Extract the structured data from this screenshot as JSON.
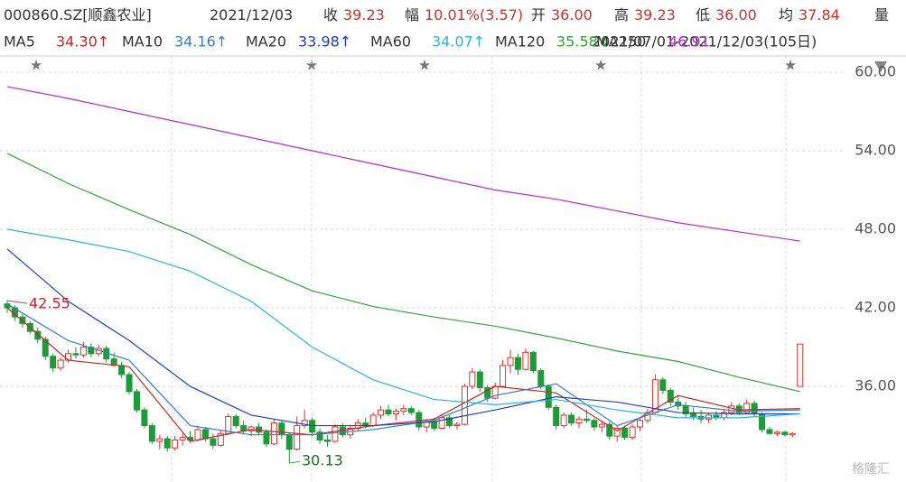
{
  "header": {
    "symbol": "000860.SZ[顺鑫农业]",
    "date": "2021/12/03",
    "fields": [
      [
        "收",
        "39.23"
      ],
      [
        "幅",
        "10.01%(3.57)"
      ],
      [
        "开",
        "36.00"
      ],
      [
        "高",
        "39.23"
      ],
      [
        "低",
        "36.00"
      ],
      [
        "均",
        "37.84"
      ]
    ],
    "volume_label": "量",
    "range": "2021/07/01-2021/12/03(105日)"
  },
  "chart_data": {
    "type": "candlestick",
    "up_color": "#e0302b",
    "down_color": "#1f9a3a",
    "ylim": [
      29.66,
      61.24
    ],
    "yticks": [
      {
        "value": 36,
        "label": "36.00"
      },
      {
        "value": 42,
        "label": "42.00"
      },
      {
        "value": 48,
        "label": "48.00"
      },
      {
        "value": 54,
        "label": "54.00"
      },
      {
        "value": 60,
        "label": "60.00"
      }
    ],
    "grid": true,
    "candles": [
      [
        42.3,
        42.55,
        41.6,
        42.0
      ],
      [
        42.0,
        42.2,
        41.0,
        41.3
      ],
      [
        41.3,
        41.6,
        40.5,
        40.8
      ],
      [
        40.8,
        41.0,
        40.0,
        40.2
      ],
      [
        40.2,
        40.5,
        39.3,
        39.6
      ],
      [
        39.6,
        39.8,
        38.0,
        38.3
      ],
      [
        38.3,
        38.5,
        37.1,
        37.4
      ],
      [
        37.4,
        38.2,
        37.2,
        38.0
      ],
      [
        38.0,
        38.8,
        37.8,
        38.5
      ],
      [
        38.5,
        39.0,
        38.1,
        38.4
      ],
      [
        38.4,
        39.4,
        38.2,
        39.0
      ],
      [
        39.0,
        39.3,
        38.2,
        38.5
      ],
      [
        38.5,
        39.2,
        38.3,
        38.9
      ],
      [
        38.9,
        39.1,
        37.8,
        38.1
      ],
      [
        38.1,
        38.6,
        37.5,
        37.6
      ],
      [
        37.6,
        37.9,
        36.6,
        36.9
      ],
      [
        36.9,
        37.1,
        35.4,
        35.6
      ],
      [
        35.6,
        35.8,
        34.0,
        34.2
      ],
      [
        34.2,
        34.4,
        32.8,
        33.0
      ],
      [
        33.0,
        33.2,
        31.6,
        31.8
      ],
      [
        31.8,
        32.3,
        31.2,
        32.0
      ],
      [
        32.0,
        32.2,
        31.0,
        31.3
      ],
      [
        31.3,
        32.2,
        31.1,
        31.9
      ],
      [
        31.9,
        32.4,
        31.5,
        32.1
      ],
      [
        32.1,
        32.6,
        31.7,
        31.9
      ],
      [
        31.9,
        33.0,
        31.8,
        32.7
      ],
      [
        32.7,
        32.9,
        31.8,
        32.0
      ],
      [
        32.0,
        32.4,
        31.2,
        31.5
      ],
      [
        31.5,
        32.6,
        31.4,
        32.4
      ],
      [
        32.4,
        33.9,
        32.3,
        33.7
      ],
      [
        33.7,
        33.9,
        32.8,
        33.0
      ],
      [
        33.0,
        33.4,
        32.4,
        32.6
      ],
      [
        32.6,
        33.0,
        32.2,
        32.9
      ],
      [
        32.9,
        33.2,
        32.3,
        32.5
      ],
      [
        32.5,
        32.7,
        31.4,
        31.6
      ],
      [
        31.6,
        33.5,
        31.5,
        33.2
      ],
      [
        33.2,
        33.4,
        32.0,
        32.3
      ],
      [
        32.3,
        32.5,
        30.13,
        31.2
      ],
      [
        31.2,
        33.7,
        31.1,
        33.0
      ],
      [
        33.0,
        34.2,
        32.8,
        33.4
      ],
      [
        33.4,
        33.6,
        32.2,
        32.5
      ],
      [
        32.5,
        32.8,
        31.6,
        31.9
      ],
      [
        31.9,
        32.3,
        31.4,
        31.8
      ],
      [
        31.8,
        33.1,
        31.7,
        32.9
      ],
      [
        32.9,
        33.2,
        32.1,
        32.3
      ],
      [
        32.3,
        33.0,
        32.0,
        32.8
      ],
      [
        32.8,
        33.5,
        32.6,
        33.2
      ],
      [
        33.2,
        33.6,
        32.8,
        33.0
      ],
      [
        33.0,
        34.0,
        32.9,
        33.8
      ],
      [
        33.8,
        34.5,
        33.5,
        34.2
      ],
      [
        34.2,
        34.6,
        33.7,
        33.9
      ],
      [
        33.9,
        34.3,
        33.4,
        34.1
      ],
      [
        34.1,
        34.6,
        33.8,
        34.3
      ],
      [
        34.3,
        34.5,
        33.8,
        34.0
      ],
      [
        34.0,
        34.2,
        32.6,
        32.9
      ],
      [
        32.9,
        33.5,
        32.5,
        33.3
      ],
      [
        33.3,
        33.6,
        32.6,
        32.8
      ],
      [
        32.8,
        33.9,
        32.7,
        33.6
      ],
      [
        33.6,
        33.8,
        32.8,
        33.0
      ],
      [
        33.0,
        33.3,
        32.7,
        33.1
      ],
      [
        33.1,
        36.2,
        33.0,
        36.0
      ],
      [
        36.0,
        37.4,
        35.8,
        37.1
      ],
      [
        37.1,
        37.3,
        35.6,
        35.9
      ],
      [
        35.9,
        36.1,
        34.8,
        35.1
      ],
      [
        35.1,
        36.3,
        35.0,
        36.0
      ],
      [
        36.0,
        38.0,
        35.9,
        37.6
      ],
      [
        37.6,
        38.8,
        37.0,
        38.2
      ],
      [
        38.2,
        38.5,
        36.9,
        37.3
      ],
      [
        37.3,
        38.9,
        37.2,
        38.6
      ],
      [
        38.6,
        38.7,
        37.0,
        37.2
      ],
      [
        37.2,
        37.4,
        35.8,
        36.0
      ],
      [
        36.0,
        36.1,
        34.2,
        34.4
      ],
      [
        34.4,
        34.6,
        32.7,
        33.0
      ],
      [
        33.0,
        34.0,
        32.8,
        33.8
      ],
      [
        33.8,
        34.0,
        33.0,
        33.2
      ],
      [
        33.2,
        33.7,
        32.8,
        33.5
      ],
      [
        33.5,
        34.2,
        33.2,
        33.4
      ],
      [
        33.4,
        33.6,
        32.6,
        32.9
      ],
      [
        32.9,
        33.3,
        32.5,
        33.1
      ],
      [
        33.1,
        33.3,
        31.9,
        32.2
      ],
      [
        32.2,
        33.0,
        31.8,
        32.8
      ],
      [
        32.8,
        33.0,
        31.9,
        32.1
      ],
      [
        32.1,
        33.1,
        31.9,
        32.9
      ],
      [
        32.9,
        33.6,
        32.6,
        33.4
      ],
      [
        33.4,
        34.3,
        33.2,
        34.0
      ],
      [
        34.0,
        36.9,
        33.9,
        36.5
      ],
      [
        36.5,
        36.7,
        35.4,
        35.7
      ],
      [
        35.7,
        35.9,
        34.5,
        34.8
      ],
      [
        34.8,
        35.3,
        34.2,
        34.5
      ],
      [
        34.5,
        34.8,
        33.6,
        33.9
      ],
      [
        33.9,
        34.4,
        33.4,
        33.7
      ],
      [
        33.7,
        34.2,
        33.2,
        33.5
      ],
      [
        33.5,
        34.0,
        33.2,
        33.8
      ],
      [
        33.8,
        34.1,
        33.4,
        33.6
      ],
      [
        33.6,
        34.3,
        33.4,
        34.0
      ],
      [
        34.0,
        34.8,
        33.8,
        34.5
      ],
      [
        34.5,
        34.7,
        33.8,
        34.0
      ],
      [
        34.0,
        35.0,
        33.9,
        34.7
      ],
      [
        34.7,
        34.9,
        33.7,
        33.9
      ],
      [
        33.9,
        34.0,
        32.5,
        32.7
      ],
      [
        32.7,
        32.9,
        32.3,
        32.4
      ],
      [
        32.4,
        32.6,
        32.2,
        32.5
      ],
      [
        32.5,
        32.6,
        32.2,
        32.3
      ],
      [
        32.3,
        32.5,
        32.1,
        32.4
      ],
      [
        36.0,
        39.23,
        36.0,
        39.23
      ]
    ],
    "series": [
      {
        "name": "MA5",
        "label": "34.30↑",
        "color": "#c0282a",
        "x": [
          0,
          8,
          16,
          24,
          32,
          40,
          48,
          56,
          64,
          72,
          80,
          88,
          96,
          104
        ],
        "values": [
          42.0,
          38.0,
          37.5,
          31.8,
          32.7,
          32.3,
          33.0,
          33.5,
          36.0,
          35.5,
          32.6,
          35.3,
          34.2,
          34.3
        ]
      },
      {
        "name": "MA10",
        "label": "34.16↑",
        "color": "#3a7ec0",
        "x": [
          0,
          8,
          16,
          24,
          32,
          40,
          48,
          56,
          64,
          72,
          80,
          88,
          96,
          104
        ],
        "values": [
          42.3,
          39.5,
          38.0,
          33.0,
          32.3,
          32.3,
          32.7,
          33.4,
          35.3,
          36.2,
          33.0,
          34.6,
          34.1,
          34.2
        ]
      },
      {
        "name": "MA20",
        "label": "33.98↑",
        "color": "#1f3fbf",
        "x": [
          0,
          8,
          16,
          24,
          32,
          40,
          48,
          56,
          64,
          72,
          80,
          88,
          96,
          104
        ],
        "values": [
          46.5,
          42.5,
          39.5,
          36.0,
          33.8,
          33.0,
          33.0,
          33.3,
          34.2,
          35.2,
          34.8,
          34.0,
          33.9,
          33.9
        ]
      },
      {
        "name": "MA60",
        "label": "34.07↑",
        "color": "#2bb5d8",
        "x": [
          0,
          8,
          16,
          24,
          32,
          40,
          48,
          56,
          64,
          72,
          80,
          88,
          96,
          104
        ],
        "values": [
          48.0,
          47.2,
          46.3,
          44.8,
          42.5,
          39.0,
          36.5,
          35.0,
          34.6,
          35.0,
          34.2,
          33.6,
          33.6,
          33.9
        ]
      },
      {
        "name": "MA120",
        "label": "35.58↓",
        "color": "#3aa03a",
        "x": [
          0,
          8,
          16,
          24,
          32,
          40,
          48,
          56,
          64,
          72,
          80,
          88,
          96,
          104
        ],
        "values": [
          53.8,
          51.5,
          49.5,
          47.6,
          45.3,
          43.3,
          42.1,
          41.3,
          40.6,
          39.7,
          38.7,
          37.9,
          36.7,
          35.6
        ]
      },
      {
        "name": "MA250",
        "label": "46.91",
        "color": "#b030c8",
        "x": [
          0,
          8,
          16,
          24,
          32,
          40,
          48,
          56,
          64,
          72,
          80,
          88,
          96,
          104
        ],
        "values": [
          58.9,
          58.0,
          57.0,
          56.0,
          55.0,
          54.0,
          53.0,
          52.0,
          51.0,
          50.3,
          49.4,
          48.5,
          47.8,
          47.1
        ]
      }
    ],
    "annotations": [
      {
        "value": 42.55,
        "label": "42.55"
      },
      {
        "value": 30.13,
        "label": "30.13"
      }
    ]
  },
  "watermark": "格隆汇"
}
